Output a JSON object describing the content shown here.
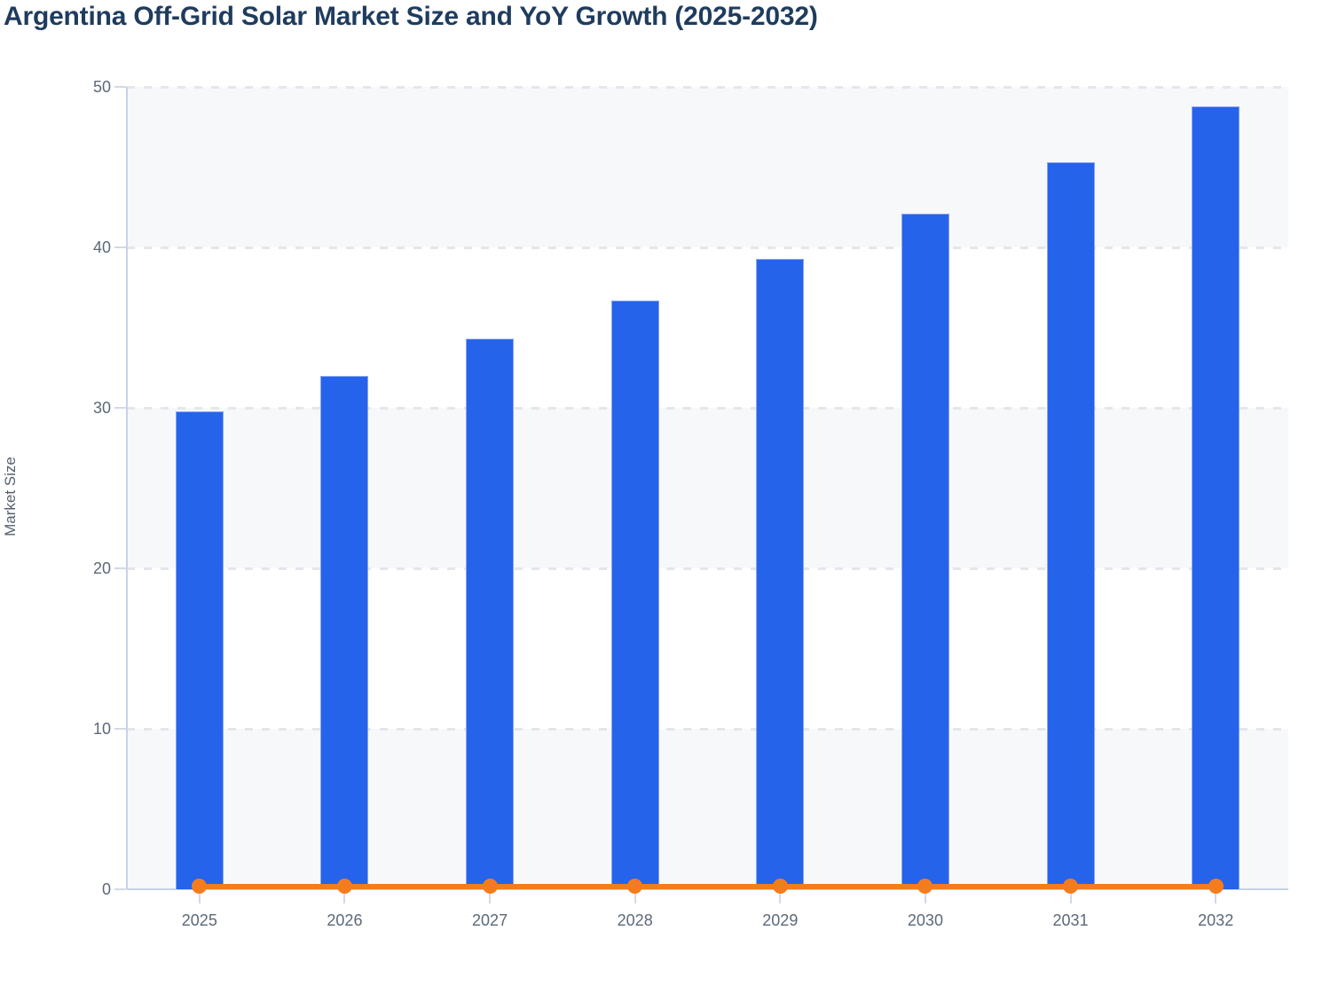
{
  "title": "Argentina Off-Grid Solar Market Size and YoY Growth (2025-2032)",
  "colors": {
    "title": "#1f3c5e",
    "axis_label": "#5d6878",
    "y_axis_title": "#545f6e",
    "bar_fill": "#2563eb",
    "bar_border": "#8aa5f0",
    "line": "#f57c1c",
    "band": "#f7f8fa",
    "band_alt": "#ffffff",
    "gridline": "#e3e6ec",
    "axis_line": "#c9d2e6",
    "tick_mark": "#d3d9e4"
  },
  "chart_data": {
    "type": "bar",
    "title": "Argentina Off-Grid Solar Market Size and YoY Growth (2025-2032)",
    "categories": [
      "2025",
      "2026",
      "2027",
      "2028",
      "2029",
      "2030",
      "2031",
      "2032"
    ],
    "series": [
      {
        "name": "Market Size",
        "type": "bar",
        "values": [
          29.8,
          32.0,
          34.3,
          36.7,
          39.3,
          42.1,
          45.3,
          48.8
        ]
      },
      {
        "name": "YoY Growth",
        "type": "line",
        "values": [
          0.07,
          0.07,
          0.07,
          0.07,
          0.07,
          0.07,
          0.08,
          0.08
        ]
      }
    ],
    "xlabel": "",
    "ylabel": "Market Size",
    "ylim": [
      0,
      50
    ],
    "yticks": [
      0,
      10,
      20,
      30,
      40,
      50
    ],
    "grid": "horizontal-dashed",
    "plot_background": "alternating-horizontal-bands",
    "legend_position": "none"
  }
}
